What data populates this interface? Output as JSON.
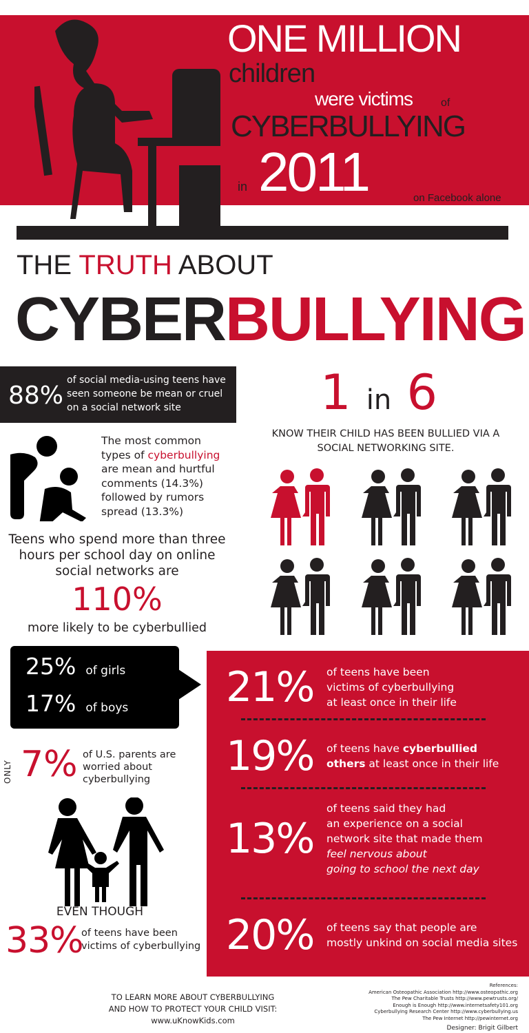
{
  "colors": {
    "accent": "#c8102e",
    "dark": "#231f20",
    "background": "#ffffff"
  },
  "hero": {
    "line1": "ONE MILLION",
    "line2": "children",
    "line3": "were victims",
    "line3b": "of",
    "line4": "CYBERBULLYING",
    "line5a": "in",
    "year": "2011",
    "note": "on Facebook alone",
    "illustration": "girl-at-computer-silhouette"
  },
  "title": {
    "prefix": "THE",
    "highlight": "TRUTH",
    "suffix": "ABOUT",
    "main_dark": "CYBER",
    "main_red": "BULLYING"
  },
  "stat88": {
    "value": "88%",
    "text": [
      "of social media-using teens have",
      "seen someone be mean or cruel",
      "on a social network site"
    ]
  },
  "one_in_six": {
    "a": "1",
    "in": "in",
    "b": "6",
    "text": [
      "KNOW THEIR CHILD HAS BEEN BULLIED VIA A",
      "SOCIAL NETWORKING SITE."
    ],
    "highlighted_couples": 1,
    "total_couples": 6
  },
  "types": {
    "pre": "The most common",
    "pre2": "types of ",
    "highlight": "cyberbullying",
    "rest": [
      "are mean and hurtful",
      "comments (14.3%)",
      "followed by rumors",
      "spread (13.3%)"
    ],
    "icon": "bully-and-victim-icon"
  },
  "hours": {
    "text": [
      "Teens who spend more than three",
      "hours per school day on online",
      "social networks are"
    ],
    "value": "110%",
    "after": "more likely to be cyberbullied"
  },
  "gender": [
    {
      "value": "25%",
      "label": "of girls"
    },
    {
      "value": "17%",
      "label": "of boys"
    }
  ],
  "parents": {
    "only": "ONLY",
    "value": "7%",
    "text": [
      "of U.S. parents are",
      "worried about",
      "cyberbullying"
    ],
    "icon": "family-icon"
  },
  "even": {
    "label": "EVEN THOUGH",
    "value": "33%",
    "text": [
      "of teens have been",
      "victims of cyberbullying"
    ]
  },
  "red_stats": [
    {
      "value": "21%",
      "lines": [
        "of teens have been",
        "victims of cyberbullying",
        "at least once in their life"
      ]
    },
    {
      "value": "19%",
      "lines": [
        "of teens have ",
        "cyberbullied",
        "others",
        " at least once in their life"
      ]
    },
    {
      "value": "13%",
      "lines": [
        "of teens said they had",
        "an experience on a social",
        "network site that made them",
        "feel nervous about",
        "going to school the next day"
      ]
    },
    {
      "value": "20%",
      "lines": [
        "of teens say that people are",
        "mostly unkind on social media sites"
      ]
    }
  ],
  "footer": {
    "learn": [
      "TO LEARN MORE ABOUT CYBERBULLYING",
      "AND HOW TO PROTECT YOUR CHILD  VISIT:",
      "www.uKnowKids.com"
    ],
    "references_label": "References:",
    "references": [
      "American Osteopathic Association  http://www.osteopathic.org",
      "The Pew Charitable Trusts  http://www.pewtrusts.org/",
      "Enough is Enough  http://www.internetsafety101.org",
      "Cyberbullying Research Center http://www.cyberbullying.us",
      "The Pew Internet http://pewinternet.org"
    ],
    "designer": "Designer: Brigit Gilbert"
  }
}
